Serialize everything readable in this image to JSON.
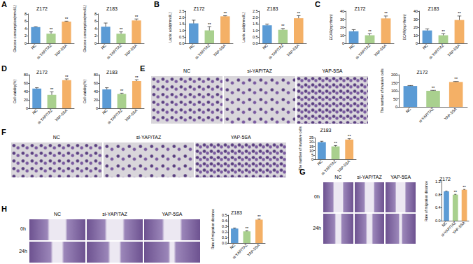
{
  "panel_labels": [
    "A",
    "B",
    "C",
    "D",
    "E",
    "F",
    "G",
    "H"
  ],
  "image_panels": [
    {
      "columns": [
        "NC",
        "si-YAP/TAZ",
        "YAP-5SA"
      ],
      "rows": []
    },
    {
      "columns": [
        "NC",
        "si-YAP/TAZ",
        "YAP-5SA"
      ],
      "rows": []
    },
    {
      "columns": [
        "NC",
        "si-YAP/TAZ",
        "YAP-5SA"
      ],
      "rows": [
        "0h",
        "24h"
      ]
    },
    {
      "columns": [
        "NC",
        "si-YAP/TAZ",
        "YAP-5SA"
      ],
      "rows": [
        "0h",
        "24h"
      ]
    }
  ],
  "chart_data": [
    {
      "type": "bar",
      "title": "Z172",
      "y_label": "Glucose consumption(mmol/L)",
      "categories": [
        "NC",
        "si-YAP/TAZ",
        "YAP-5SA"
      ],
      "values": [
        4.4,
        2.6,
        5.9
      ],
      "errors": [
        0.1,
        0.5,
        0.1
      ],
      "annotations": [
        null,
        "**",
        "**"
      ],
      "colors": [
        "#5b9bd5",
        "#a9d08e",
        "#f4b066"
      ],
      "ylim": [
        0,
        8
      ],
      "yticks": [
        0,
        2,
        4,
        6,
        8
      ]
    },
    {
      "type": "bar",
      "title": "Z183",
      "y_label": "Glucose consumption(mmol/L)",
      "categories": [
        "NC",
        "si-YAP/TAZ",
        "YAP-5SA"
      ],
      "values": [
        4.5,
        2.6,
        6.2
      ],
      "errors": [
        1.0,
        0.5,
        0.4
      ],
      "annotations": [
        null,
        "**",
        "**"
      ],
      "colors": [
        "#5b9bd5",
        "#a9d08e",
        "#f4b066"
      ],
      "ylim": [
        0,
        8
      ],
      "yticks": [
        0,
        2,
        4,
        6,
        8
      ]
    },
    {
      "type": "bar",
      "title": "Z172",
      "y_label": "Lactic acid(mmol/L)",
      "categories": [
        "NC",
        "si-YAP/TAZ",
        "YAP-5SA"
      ],
      "values": [
        1.55,
        1.0,
        2.1
      ],
      "errors": [
        0.25,
        0.3,
        0.05
      ],
      "annotations": [
        null,
        "**",
        "**"
      ],
      "colors": [
        "#5b9bd5",
        "#a9d08e",
        "#f4b066"
      ],
      "ylim": [
        0,
        2.5
      ],
      "yticks": [
        {
          "value": 0,
          "label": "0.0"
        },
        0.5,
        {
          "value": 1,
          "label": "1.0"
        },
        1.5,
        {
          "value": 2,
          "label": "2.0"
        },
        2.5
      ]
    },
    {
      "type": "bar",
      "title": "Z183",
      "y_label": "Lactic acid(mmol/L)",
      "categories": [
        "NC",
        "si-YAP/TAZ",
        "YAP-5SA"
      ],
      "values": [
        1.4,
        1.05,
        1.95
      ],
      "errors": [
        0.1,
        0.1,
        0.2
      ],
      "annotations": [
        null,
        "**",
        "**"
      ],
      "colors": [
        "#5b9bd5",
        "#a9d08e",
        "#f4b066"
      ],
      "ylim": [
        0,
        2.5
      ],
      "yticks": [
        {
          "value": 0,
          "label": "0.0"
        },
        0.5,
        {
          "value": 1,
          "label": "1.0"
        },
        1.5,
        {
          "value": 2,
          "label": "2.0"
        },
        2.5
      ]
    },
    {
      "type": "bar",
      "title": "Z172",
      "y_label": "ECAR(mpH/min)",
      "categories": [
        "NC",
        "si-YAP/TAZ",
        "YAP-5SA"
      ],
      "values": [
        15,
        10,
        31
      ],
      "errors": [
        2,
        2,
        3
      ],
      "annotations": [
        null,
        "**",
        "**"
      ],
      "colors": [
        "#5b9bd5",
        "#a9d08e",
        "#f4b066"
      ],
      "ylim": [
        0,
        40
      ],
      "yticks": [
        0,
        10,
        20,
        30,
        40
      ]
    },
    {
      "type": "bar",
      "title": "Z183",
      "y_label": "ECAR(mpH/min)",
      "categories": [
        "NC",
        "si-YAP/TAZ",
        "YAP-5SA"
      ],
      "values": [
        16,
        10,
        29
      ],
      "errors": [
        2,
        2,
        5
      ],
      "annotations": [
        null,
        "**",
        "**"
      ],
      "colors": [
        "#5b9bd5",
        "#a9d08e",
        "#f4b066"
      ],
      "ylim": [
        0,
        40
      ],
      "yticks": [
        0,
        10,
        20,
        30,
        40
      ]
    },
    {
      "type": "bar",
      "title": "Z172",
      "y_label": "Cell viability(%)",
      "categories": [
        "NC",
        "si-YAP/TAZ",
        "YAP-5SA"
      ],
      "values": [
        47,
        32,
        67
      ],
      "errors": [
        2,
        7,
        3
      ],
      "annotations": [
        null,
        "**",
        "**"
      ],
      "colors": [
        "#5b9bd5",
        "#a9d08e",
        "#f4b066"
      ],
      "ylim": [
        0,
        80
      ],
      "yticks": [
        0,
        20,
        40,
        60,
        80
      ]
    },
    {
      "type": "bar",
      "title": "Z183",
      "y_label": "Cell viability(%)",
      "categories": [
        "NC",
        "si-YAP/TAZ",
        "YAP-5SA"
      ],
      "values": [
        45,
        34,
        65
      ],
      "errors": [
        4,
        2,
        3
      ],
      "annotations": [
        null,
        "**",
        "**"
      ],
      "colors": [
        "#5b9bd5",
        "#a9d08e",
        "#f4b066"
      ],
      "ylim": [
        0,
        80
      ],
      "yticks": [
        0,
        20,
        40,
        60,
        80
      ]
    },
    {
      "type": "bar",
      "title": "Z172",
      "y_label": "The number of invasive cells",
      "categories": [
        "NC",
        "si-YAP/TAZ",
        "YAP-5SA"
      ],
      "values": [
        130,
        100,
        155
      ],
      "errors": [
        3,
        3,
        3
      ],
      "annotations": [
        null,
        "**",
        "**"
      ],
      "colors": [
        "#5b9bd5",
        "#a9d08e",
        "#f4b066"
      ],
      "ylim": [
        0,
        200
      ],
      "yticks": [
        0,
        50,
        100,
        150,
        200
      ]
    },
    {
      "type": "bar",
      "title": "Z183",
      "y_label": "The number of invasive cells",
      "categories": [
        "NC",
        "si-YAP/TAZ",
        "YAP-5SA"
      ],
      "values": [
        20,
        15,
        23
      ],
      "errors": [
        1,
        1,
        1
      ],
      "annotations": [
        null,
        "**",
        "**"
      ],
      "colors": [
        "#5b9bd5",
        "#a9d08e",
        "#f4b066"
      ],
      "ylim": [
        0,
        25
      ],
      "yticks": [
        0,
        5,
        10,
        15,
        20,
        25
      ]
    },
    {
      "type": "bar",
      "title": "Z172",
      "y_label": "Rate of migration distance",
      "categories": [
        "NC",
        "si-YAP/TAZ",
        "YAP-5SA"
      ],
      "values": [
        0.9,
        0.8,
        0.95
      ],
      "errors": [
        0.01,
        0.01,
        0.01
      ],
      "annotations": [
        null,
        "**",
        "**"
      ],
      "colors": [
        "#5b9bd5",
        "#a9d08e",
        "#f4b066"
      ],
      "ylim": [
        0,
        1.2
      ],
      "yticks": [
        {
          "value": 0,
          "label": "0.0"
        },
        0.4,
        0.8,
        1.2
      ]
    },
    {
      "type": "bar",
      "title": "Z183",
      "y_label": "Rate of migration distance",
      "categories": [
        "NC",
        "si-YAP/TAZ",
        "YAP-5SA"
      ],
      "values": [
        0.26,
        0.21,
        0.42
      ],
      "errors": [
        0.01,
        0.01,
        0.01
      ],
      "annotations": [
        null,
        "**",
        "**"
      ],
      "colors": [
        "#5b9bd5",
        "#a9d08e",
        "#f4b066"
      ],
      "ylim": [
        0,
        0.5
      ],
      "yticks": [
        {
          "value": 0,
          "label": "0.0"
        },
        0.1,
        0.2,
        0.3,
        0.4,
        0.5
      ]
    }
  ]
}
